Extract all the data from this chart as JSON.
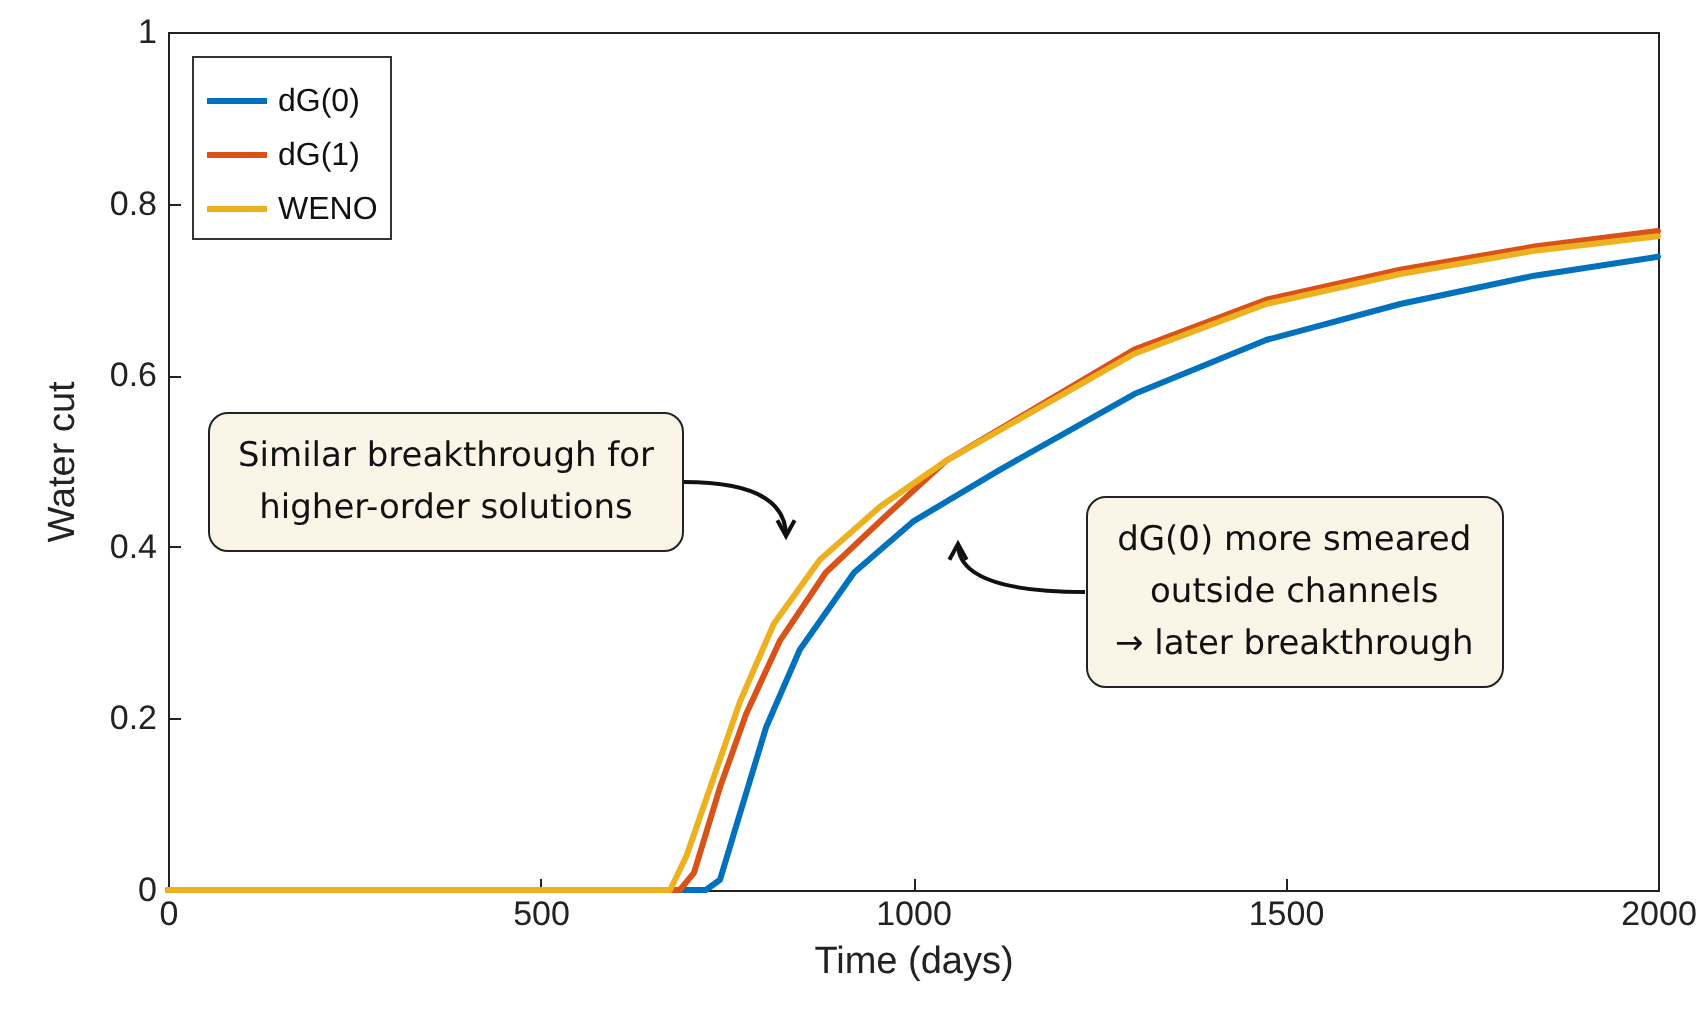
{
  "chart_data": {
    "type": "line",
    "xlabel": "Time (days)",
    "ylabel": "Water cut",
    "xlim": [
      0,
      2000
    ],
    "xticks": [
      0,
      500,
      1000,
      1500,
      2000
    ],
    "ylim": [
      0,
      1
    ],
    "yticks": [
      0,
      0.2,
      0.4,
      0.6,
      0.8,
      1
    ],
    "grid": false,
    "legend": "top left",
    "marker": "none",
    "line_style": "solid",
    "series": [
      {
        "name": "dG(0)",
        "color": "#0072bd",
        "x": [
          0,
          722,
          741,
          768,
          803,
          848,
          921,
          1001,
          1117,
          1297,
          1474,
          1654,
          1834,
          2000
        ],
        "values": [
          0,
          0,
          0.012,
          0.09,
          0.19,
          0.28,
          0.37,
          0.43,
          0.49,
          0.578,
          0.641,
          0.683,
          0.716,
          0.738
        ]
      },
      {
        "name": "dG(1)",
        "color": "#d95319",
        "x": [
          0,
          687,
          706,
          741,
          776,
          821,
          883,
          956,
          1044,
          1297,
          1474,
          1654,
          1834,
          2000
        ],
        "values": [
          0,
          0,
          0.02,
          0.12,
          0.205,
          0.29,
          0.37,
          0.43,
          0.5,
          0.63,
          0.688,
          0.723,
          0.75,
          0.768
        ]
      },
      {
        "name": "WENO",
        "color": "#edb120",
        "x": [
          0,
          674,
          696,
          732,
          768,
          813,
          875,
          956,
          1044,
          1297,
          1474,
          1654,
          1834,
          2000
        ],
        "values": [
          0,
          0,
          0.04,
          0.13,
          0.22,
          0.31,
          0.385,
          0.447,
          0.5,
          0.625,
          0.683,
          0.718,
          0.745,
          0.762
        ]
      }
    ],
    "annotations": [
      "Similar breakthrough for\nhigher-order solutions",
      "dG(0) more smeared\noutside channels\n→ later breakthrough"
    ]
  }
}
